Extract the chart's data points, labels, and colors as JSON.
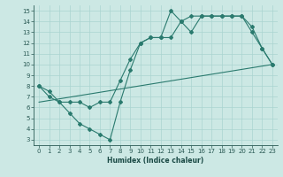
{
  "xlabel": "Humidex (Indice chaleur)",
  "background_color": "#cce8e4",
  "grid_color": "#aad4d0",
  "line_color": "#2a7a6e",
  "xlim": [
    -0.5,
    23.5
  ],
  "ylim": [
    2.5,
    15.5
  ],
  "xticks": [
    0,
    1,
    2,
    3,
    4,
    5,
    6,
    7,
    8,
    9,
    10,
    11,
    12,
    13,
    14,
    15,
    16,
    17,
    18,
    19,
    20,
    21,
    22,
    23
  ],
  "yticks": [
    3,
    4,
    5,
    6,
    7,
    8,
    9,
    10,
    11,
    12,
    13,
    14,
    15
  ],
  "line1_x": [
    0,
    1,
    2,
    3,
    4,
    5,
    6,
    7,
    8,
    9,
    10,
    11,
    12,
    13,
    14,
    15,
    16,
    17,
    18,
    19,
    20,
    21,
    22,
    23
  ],
  "line1_y": [
    8,
    7,
    6.5,
    5.5,
    4.5,
    4,
    3.5,
    3,
    6.5,
    9.5,
    12,
    12.5,
    12.5,
    15,
    14,
    13,
    14.5,
    14.5,
    14.5,
    14.5,
    14.5,
    13,
    11.5,
    10
  ],
  "line2_x": [
    0,
    1,
    2,
    3,
    4,
    5,
    6,
    7,
    8,
    9,
    10,
    11,
    12,
    13,
    14,
    15,
    16,
    17,
    18,
    19,
    20,
    21,
    22,
    23
  ],
  "line2_y": [
    8,
    7.5,
    6.5,
    6.5,
    6.5,
    6,
    6.5,
    6.5,
    8.5,
    10.5,
    12,
    12.5,
    12.5,
    12.5,
    14,
    14.5,
    14.5,
    14.5,
    14.5,
    14.5,
    14.5,
    13.5,
    11.5,
    10
  ],
  "line3_x": [
    0,
    23
  ],
  "line3_y": [
    6.5,
    10
  ]
}
